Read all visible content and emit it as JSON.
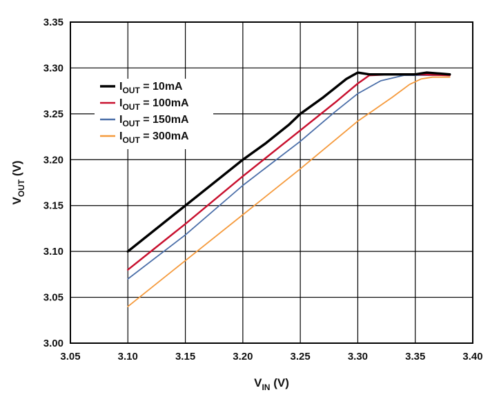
{
  "chart_data": {
    "type": "line",
    "xlabel": {
      "main": "V",
      "sub": "IN",
      "unit": " (V)"
    },
    "ylabel": {
      "main": "V",
      "sub": "OUT",
      "unit": " (V)"
    },
    "xlim": [
      3.05,
      3.4
    ],
    "ylim": [
      3.0,
      3.35
    ],
    "xticks": [
      "3.05",
      "3.10",
      "3.15",
      "3.20",
      "3.25",
      "3.30",
      "3.35",
      "3.40"
    ],
    "yticks": [
      "3.00",
      "3.05",
      "3.10",
      "3.15",
      "3.20",
      "3.25",
      "3.30",
      "3.35"
    ],
    "grid": true,
    "legend_position": "upper-left",
    "series": [
      {
        "name_main": "I",
        "name_sub": "OUT",
        "name_value": " = 10mA",
        "color": "#000000",
        "width": 3.5,
        "x": [
          3.1,
          3.15,
          3.2,
          3.22,
          3.24,
          3.25,
          3.27,
          3.29,
          3.3,
          3.31,
          3.33,
          3.35,
          3.36,
          3.38
        ],
        "y": [
          3.1,
          3.15,
          3.2,
          3.218,
          3.238,
          3.25,
          3.268,
          3.288,
          3.295,
          3.293,
          3.293,
          3.293,
          3.295,
          3.293
        ]
      },
      {
        "name_main": "I",
        "name_sub": "OUT",
        "name_value": " = 100mA",
        "color": "#c8102e",
        "width": 2.5,
        "x": [
          3.1,
          3.15,
          3.2,
          3.25,
          3.28,
          3.3,
          3.31,
          3.33,
          3.35,
          3.38
        ],
        "y": [
          3.08,
          3.13,
          3.182,
          3.232,
          3.262,
          3.283,
          3.292,
          3.293,
          3.293,
          3.292
        ]
      },
      {
        "name_main": "I",
        "name_sub": "OUT",
        "name_value": " = 150mA",
        "color": "#4a6ea8",
        "width": 1.8,
        "x": [
          3.1,
          3.15,
          3.2,
          3.25,
          3.28,
          3.3,
          3.32,
          3.34,
          3.36,
          3.38
        ],
        "y": [
          3.07,
          3.118,
          3.172,
          3.22,
          3.252,
          3.272,
          3.286,
          3.292,
          3.292,
          3.292
        ]
      },
      {
        "name_main": "I",
        "name_sub": "OUT",
        "name_value": " = 300mA",
        "color": "#f59a3c",
        "width": 1.8,
        "x": [
          3.1,
          3.15,
          3.2,
          3.25,
          3.3,
          3.33,
          3.345,
          3.355,
          3.365,
          3.38
        ],
        "y": [
          3.04,
          3.09,
          3.14,
          3.19,
          3.242,
          3.268,
          3.282,
          3.288,
          3.29,
          3.29
        ]
      }
    ]
  }
}
